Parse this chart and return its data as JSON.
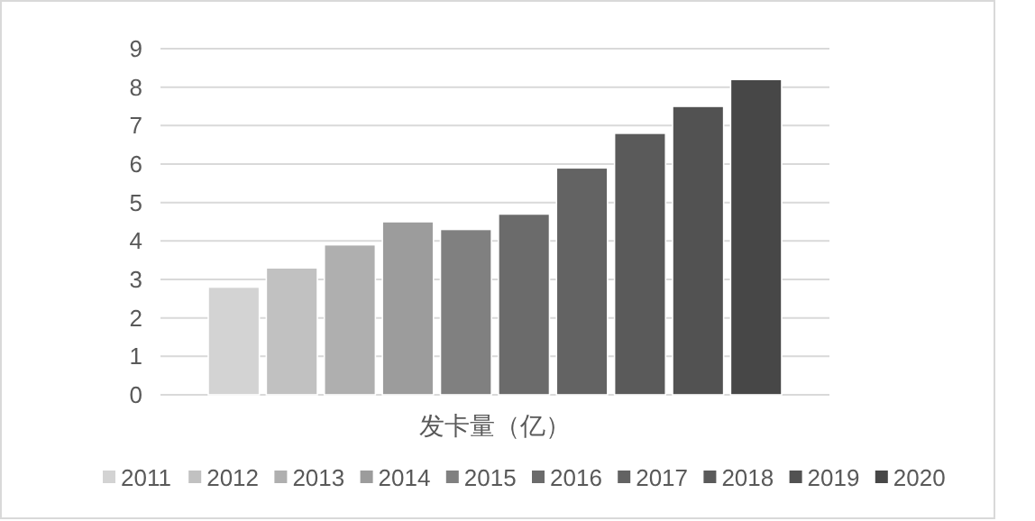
{
  "chart_data": {
    "type": "bar",
    "categories": [
      "发卡量（亿）"
    ],
    "series": [
      {
        "name": "2011",
        "color": "#d3d3d3",
        "values": [
          2.8
        ]
      },
      {
        "name": "2012",
        "color": "#c1c1c1",
        "values": [
          3.3
        ]
      },
      {
        "name": "2013",
        "color": "#afafaf",
        "values": [
          3.9
        ]
      },
      {
        "name": "2014",
        "color": "#9c9c9c",
        "values": [
          4.5
        ]
      },
      {
        "name": "2015",
        "color": "#808080",
        "values": [
          4.3
        ]
      },
      {
        "name": "2016",
        "color": "#6b6b6b",
        "values": [
          4.7
        ]
      },
      {
        "name": "2017",
        "color": "#636363",
        "values": [
          5.9
        ]
      },
      {
        "name": "2018",
        "color": "#5a5a5a",
        "values": [
          6.8
        ]
      },
      {
        "name": "2019",
        "color": "#525252",
        "values": [
          7.5
        ]
      },
      {
        "name": "2020",
        "color": "#474747",
        "values": [
          8.2
        ]
      }
    ],
    "ylim": [
      0,
      9
    ],
    "yticks": [
      0,
      1,
      2,
      3,
      4,
      5,
      6,
      7,
      8,
      9
    ],
    "grid": "y",
    "legend": "bottom"
  }
}
